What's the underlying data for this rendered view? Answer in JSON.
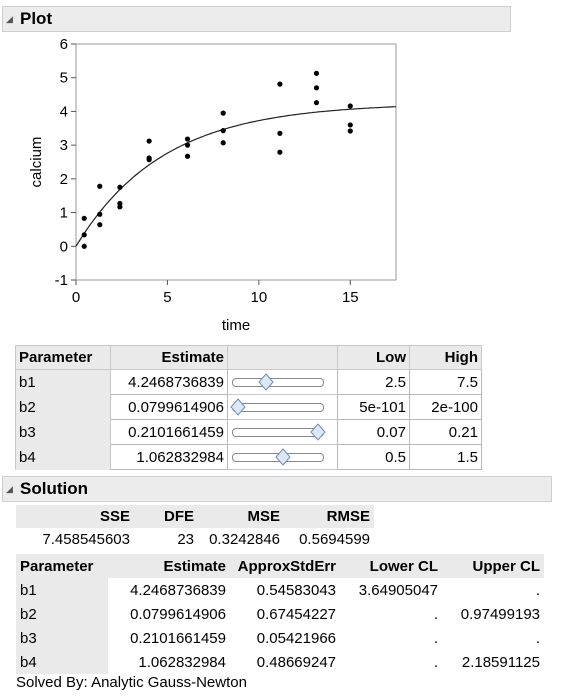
{
  "plot": {
    "title": "Plot",
    "xlabel": "time",
    "ylabel": "calcium",
    "x_ticks": [
      "0",
      "5",
      "10",
      "15"
    ],
    "y_ticks": [
      "-1",
      "0",
      "1",
      "2",
      "3",
      "4",
      "5",
      "6"
    ]
  },
  "chart_data": {
    "type": "scatter",
    "xlabel": "time",
    "ylabel": "calcium",
    "xlim": [
      0,
      17.5
    ],
    "ylim": [
      -1,
      6
    ],
    "grid": false,
    "points": [
      [
        0.45,
        0.34
      ],
      [
        0.45,
        0.0
      ],
      [
        0.45,
        0.83
      ],
      [
        1.3,
        1.78
      ],
      [
        1.3,
        0.95
      ],
      [
        1.3,
        0.64
      ],
      [
        2.4,
        1.75
      ],
      [
        2.4,
        1.27
      ],
      [
        2.4,
        1.17
      ],
      [
        4.0,
        3.12
      ],
      [
        4.0,
        2.62
      ],
      [
        4.0,
        2.57
      ],
      [
        6.1,
        3.18
      ],
      [
        6.1,
        3.0
      ],
      [
        6.1,
        2.67
      ],
      [
        8.05,
        3.95
      ],
      [
        8.05,
        3.43
      ],
      [
        8.05,
        3.07
      ],
      [
        11.15,
        4.81
      ],
      [
        11.15,
        3.35
      ],
      [
        11.15,
        2.79
      ],
      [
        13.15,
        5.13
      ],
      [
        13.15,
        4.7
      ],
      [
        13.15,
        4.26
      ],
      [
        15.0,
        4.16
      ],
      [
        15.0,
        3.6
      ],
      [
        15.0,
        3.42
      ]
    ],
    "fit_params": {
      "b1": 4.2468736839,
      "b2": 0.0799614906,
      "b3": 0.2101661459,
      "b4": 1.062832984
    }
  },
  "params_table": {
    "headers": [
      "Parameter",
      "Estimate",
      "",
      "Low",
      "High"
    ],
    "rows": [
      {
        "name": "b1",
        "estimate": "4.2468736839",
        "low": "2.5",
        "high": "7.5",
        "slider_pos": 0.35
      },
      {
        "name": "b2",
        "estimate": "0.0799614906",
        "low": "5e-101",
        "high": "2e-100",
        "slider_pos": 0.0
      },
      {
        "name": "b3",
        "estimate": "0.2101661459",
        "low": "0.07",
        "high": "0.21",
        "slider_pos": 1.0
      },
      {
        "name": "b4",
        "estimate": "1.062832984",
        "low": "0.5",
        "high": "1.5",
        "slider_pos": 0.56
      }
    ]
  },
  "solution": {
    "title": "Solution",
    "stats_headers": [
      "SSE",
      "DFE",
      "MSE",
      "RMSE"
    ],
    "stats_values": [
      "7.458545603",
      "23",
      "0.3242846",
      "0.5694599"
    ],
    "est_headers": [
      "Parameter",
      "Estimate",
      "ApproxStdErr",
      "Lower CL",
      "Upper CL"
    ],
    "est_rows": [
      [
        "b1",
        "4.2468736839",
        "0.54583043",
        "3.64905047",
        "."
      ],
      [
        "b2",
        "0.0799614906",
        "0.67454227",
        ".",
        "0.97499193"
      ],
      [
        "b3",
        "0.2101661459",
        "0.05421966",
        ".",
        "."
      ],
      [
        "b4",
        "1.062832984",
        "0.48669247",
        ".",
        "2.18591125"
      ]
    ],
    "solved_label": "Solved By:",
    "solved_value": "Analytic Gauss-Newton"
  }
}
